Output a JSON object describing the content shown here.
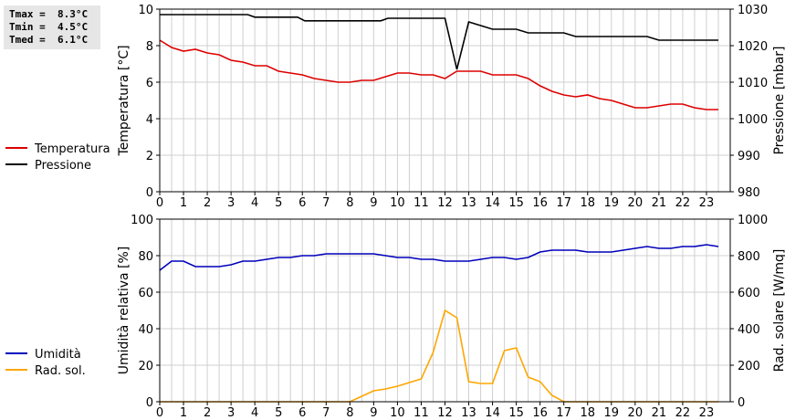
{
  "stats": {
    "tmax": "Tmax =  8.3°C",
    "tmin": "Tmin =  4.5°C",
    "tmed": "Tmed =  6.1°C"
  },
  "chart_data": [
    {
      "type": "line",
      "xlim": [
        0,
        24
      ],
      "x_ticks": [
        "0",
        "1",
        "2",
        "3",
        "4",
        "5",
        "6",
        "7",
        "8",
        "9",
        "10",
        "11",
        "12",
        "13",
        "14",
        "15",
        "16",
        "17",
        "18",
        "19",
        "20",
        "21",
        "22",
        "23"
      ],
      "ylabel_left": "Temperatura [°C]",
      "ylabel_right": "Pressione [mbar]",
      "ylim_left": [
        0,
        10
      ],
      "ylim_right": [
        980,
        1030
      ],
      "yticks_left": [
        "0",
        "2",
        "4",
        "6",
        "8",
        "10"
      ],
      "yticks_right": [
        "980",
        "990",
        "1000",
        "1010",
        "1020",
        "1030"
      ],
      "grid": true,
      "legend_position": "left",
      "series": [
        {
          "name": "Temperatura",
          "axis": "left",
          "color": "#dd0000",
          "x": [
            0,
            0.5,
            1,
            1.5,
            2,
            2.5,
            3,
            3.5,
            4,
            4.5,
            5,
            5.5,
            6,
            6.5,
            7,
            7.5,
            8,
            8.5,
            9,
            9.5,
            10,
            10.5,
            11,
            11.5,
            12,
            12.5,
            13,
            13.5,
            14,
            14.5,
            15,
            15.5,
            16,
            16.5,
            17,
            17.5,
            18,
            18.5,
            19,
            19.5,
            20,
            20.5,
            21,
            21.5,
            22,
            22.5,
            23,
            23.5
          ],
          "y": [
            8.3,
            7.9,
            7.7,
            7.8,
            7.6,
            7.5,
            7.2,
            7.1,
            6.9,
            6.9,
            6.6,
            6.5,
            6.4,
            6.2,
            6.1,
            6.0,
            6.0,
            6.1,
            6.1,
            6.3,
            6.5,
            6.5,
            6.4,
            6.4,
            6.2,
            6.6,
            6.6,
            6.6,
            6.4,
            6.4,
            6.4,
            6.2,
            5.8,
            5.5,
            5.3,
            5.2,
            5.3,
            5.1,
            5.0,
            4.8,
            4.6,
            4.6,
            4.7,
            4.8,
            4.8,
            4.6,
            4.5,
            4.5
          ]
        },
        {
          "name": "Pressione",
          "axis": "right",
          "color": "#000000",
          "x": [
            0,
            3.7,
            4,
            5.8,
            6.1,
            9.3,
            9.6,
            12,
            12.5,
            13,
            13.5,
            14,
            15,
            15.5,
            16,
            17,
            17.5,
            20.5,
            21,
            23.5
          ],
          "y": [
            1028.5,
            1028.5,
            1027.8,
            1027.8,
            1026.8,
            1026.8,
            1027.5,
            1027.5,
            1013.5,
            1026.5,
            1025.5,
            1024.5,
            1024.5,
            1023.5,
            1023.5,
            1023.5,
            1022.5,
            1022.5,
            1021.5,
            1021.5
          ]
        }
      ]
    },
    {
      "type": "line",
      "xlim": [
        0,
        24
      ],
      "x_ticks": [
        "0",
        "1",
        "2",
        "3",
        "4",
        "5",
        "6",
        "7",
        "8",
        "9",
        "10",
        "11",
        "12",
        "13",
        "14",
        "15",
        "16",
        "17",
        "18",
        "19",
        "20",
        "21",
        "22",
        "23"
      ],
      "ylabel_left": "Umidità relativa [%]",
      "ylabel_right": "Rad. solare [W/mq]",
      "ylim_left": [
        0,
        100
      ],
      "ylim_right": [
        0,
        1000
      ],
      "yticks_left": [
        "0",
        "20",
        "40",
        "60",
        "80",
        "100"
      ],
      "yticks_right": [
        "0",
        "200",
        "400",
        "600",
        "800",
        "1000"
      ],
      "grid": true,
      "legend_position": "left",
      "series": [
        {
          "name": "Umidità",
          "axis": "left",
          "color": "#0000bb",
          "x": [
            0,
            0.5,
            1,
            1.5,
            2,
            2.5,
            3,
            3.5,
            4,
            4.5,
            5,
            5.5,
            6,
            6.5,
            7,
            7.5,
            8,
            8.5,
            9,
            9.5,
            10,
            10.5,
            11,
            11.5,
            12,
            12.5,
            13,
            13.5,
            14,
            14.5,
            15,
            15.5,
            16,
            16.5,
            17,
            17.5,
            18,
            18.5,
            19,
            19.5,
            20,
            20.5,
            21,
            21.5,
            22,
            22.5,
            23,
            23.5
          ],
          "y": [
            72,
            77,
            77,
            74,
            74,
            74,
            75,
            77,
            77,
            78,
            79,
            79,
            80,
            80,
            81,
            81,
            81,
            81,
            81,
            80,
            79,
            79,
            78,
            78,
            77,
            77,
            77,
            78,
            79,
            79,
            78,
            79,
            82,
            83,
            83,
            83,
            82,
            82,
            82,
            83,
            84,
            85,
            84,
            84,
            85,
            85,
            86,
            85
          ]
        },
        {
          "name": "Rad. sol.",
          "axis": "right",
          "color": "#ffa500",
          "x": [
            0,
            8,
            8.5,
            9,
            9.5,
            10,
            10.5,
            11,
            11.5,
            12,
            12.5,
            13,
            13.5,
            14,
            14.5,
            15,
            15.5,
            16,
            16.5,
            17,
            23.5
          ],
          "y": [
            0,
            0,
            30,
            60,
            70,
            85,
            105,
            125,
            270,
            500,
            460,
            110,
            100,
            100,
            280,
            295,
            135,
            110,
            35,
            0,
            0
          ]
        }
      ]
    }
  ]
}
